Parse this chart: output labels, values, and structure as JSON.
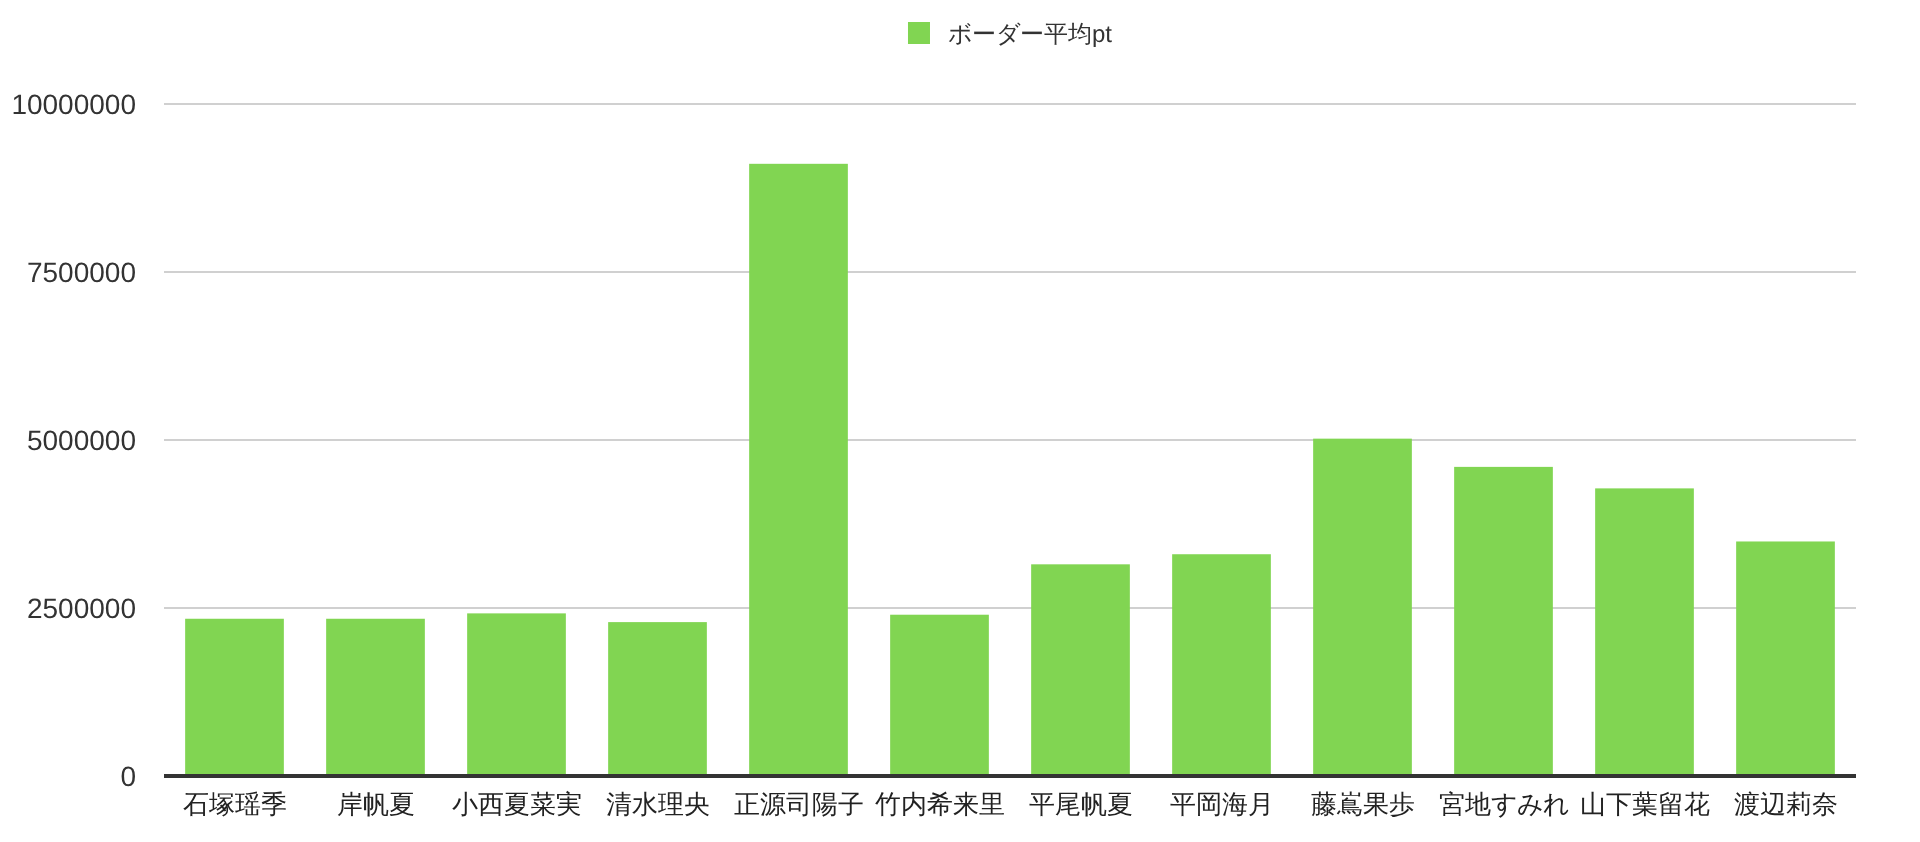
{
  "chart_data": {
    "type": "bar",
    "categories": [
      "石塚瑶季",
      "岸帆夏",
      "小西夏菜実",
      "清水理央",
      "正源司陽子",
      "竹内希来里",
      "平尾帆夏",
      "平岡海月",
      "藤嶌果歩",
      "宮地すみれ",
      "山下葉留花",
      "渡辺莉奈"
    ],
    "series": [
      {
        "name": "ボーダー平均pt",
        "color": "#81d552",
        "values": [
          2340000,
          2340000,
          2420000,
          2290000,
          9110000,
          2400000,
          3150000,
          3300000,
          5020000,
          4600000,
          4280000,
          3490000
        ]
      }
    ],
    "ylim": [
      0,
      10000000
    ],
    "yticks": [
      0,
      2500000,
      5000000,
      7500000,
      10000000
    ],
    "grid": "y",
    "legend": "top"
  }
}
